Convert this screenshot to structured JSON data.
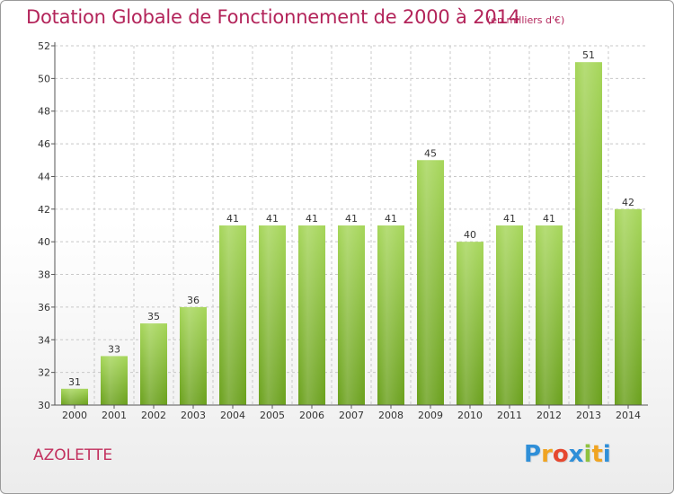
{
  "title": "Dotation Globale de Fonctionnement de 2000 à 2014",
  "subtitle": "(en milliers d'€)",
  "commune": "AZOLETTE",
  "logo": {
    "text": "Proxiti",
    "letters": [
      "P",
      "r",
      "o",
      "x",
      "i",
      "t",
      "i"
    ],
    "colors": [
      "#2f8fd8",
      "#f0a422",
      "#e6482f",
      "#2f8fd8",
      "#8fc23f",
      "#f0a422",
      "#2f8fd8"
    ]
  },
  "colors": {
    "title": "#b3245a",
    "bar_light": "#a6d65a",
    "bar_dark": "#6aa01c",
    "grid": "#c8c8c8",
    "axis": "#555555",
    "text": "#333333"
  },
  "chart_data": {
    "type": "bar",
    "title": "Dotation Globale de Fonctionnement de 2000 à 2014",
    "subtitle": "(en milliers d'€)",
    "categories": [
      "2000",
      "2001",
      "2002",
      "2003",
      "2004",
      "2005",
      "2006",
      "2007",
      "2008",
      "2009",
      "2010",
      "2011",
      "2012",
      "2013",
      "2014"
    ],
    "values": [
      31,
      33,
      35,
      36,
      41,
      41,
      41,
      41,
      41,
      45,
      40,
      41,
      41,
      51,
      42
    ],
    "ylim": [
      30,
      52
    ],
    "yticks": [
      30,
      32,
      34,
      36,
      38,
      40,
      42,
      44,
      46,
      48,
      50,
      52
    ],
    "grid": true,
    "data_labels": true
  }
}
